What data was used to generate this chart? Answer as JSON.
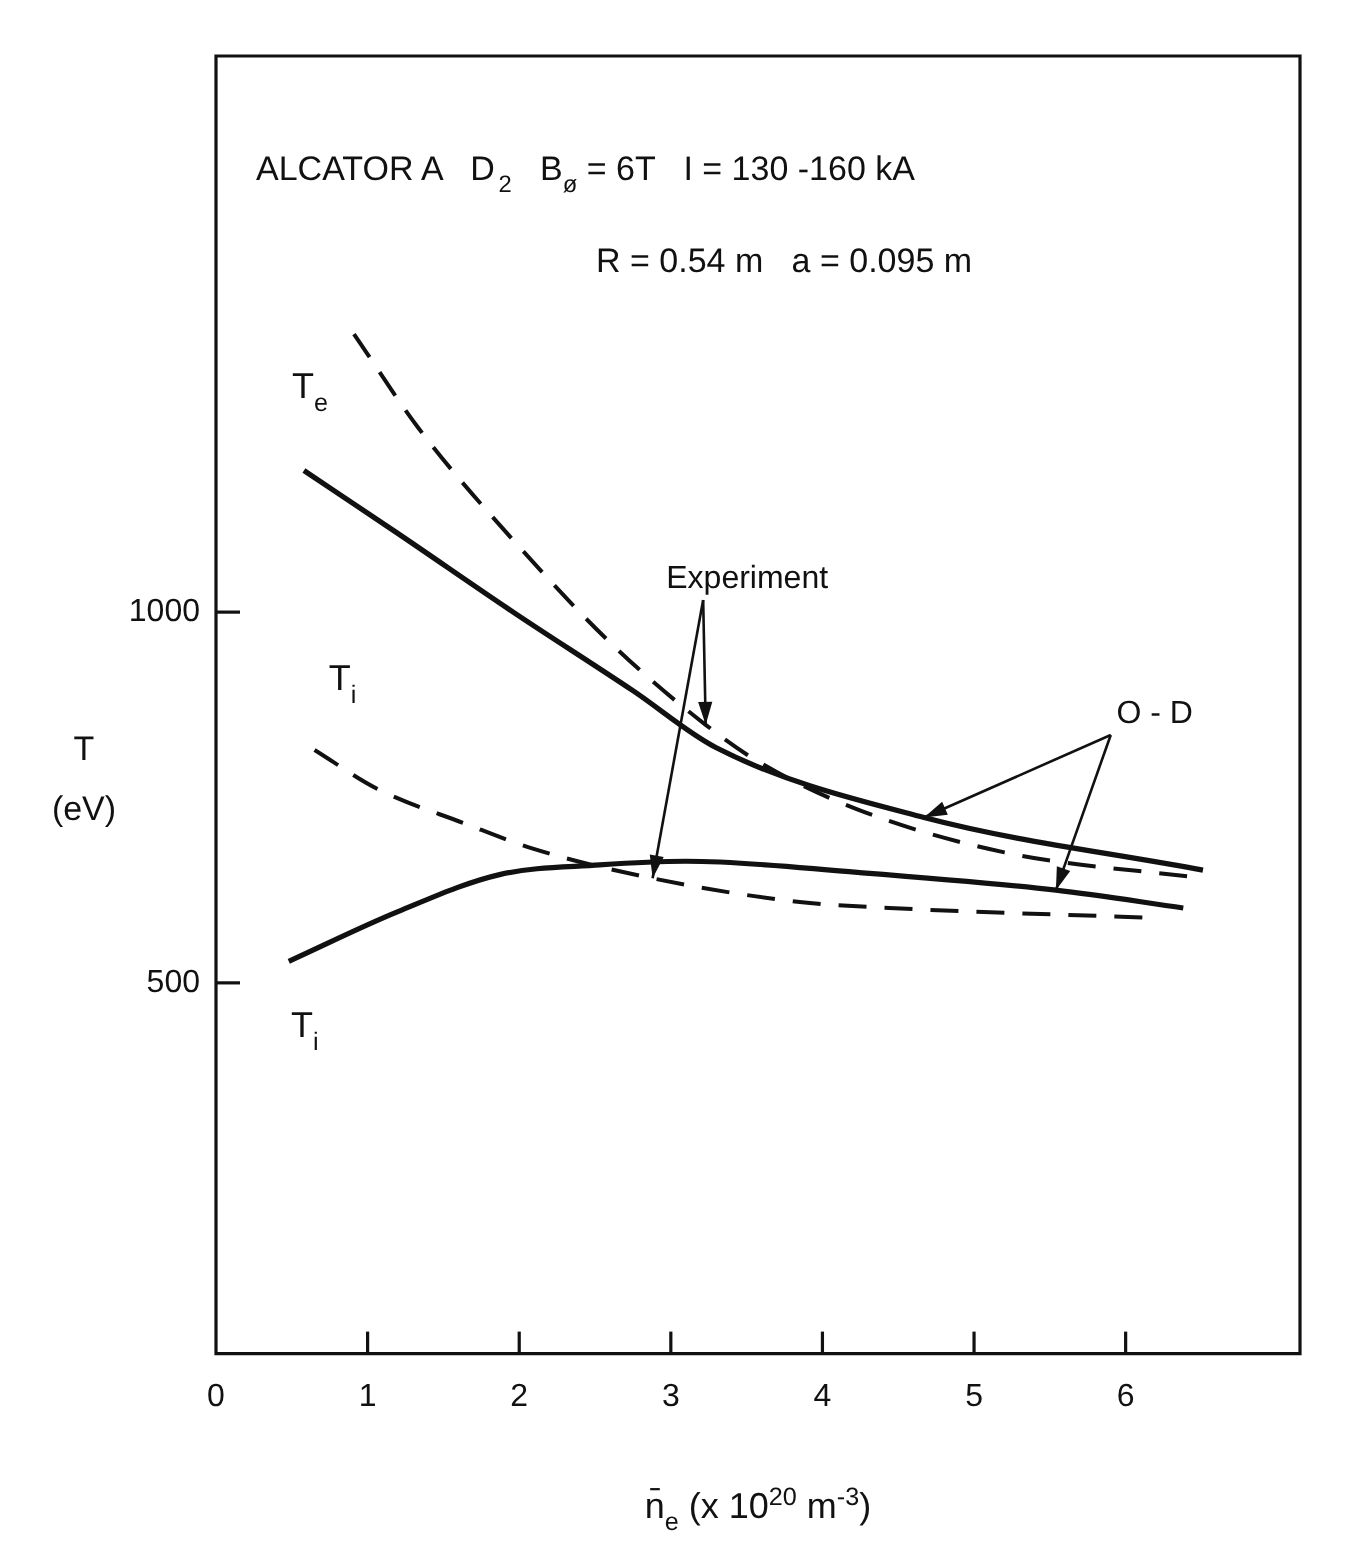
{
  "chart_data": {
    "type": "line",
    "title": "ALCATOR A   D$_{2}$   B$_{ø}$ = 6T   I = 130 -160 kA",
    "subtitle": "R = 0.54 m   a = 0.095 m",
    "xlabel": "n̄$_{e}$ (x 10$^{20}$ m$^{-3}$)",
    "ylabel": "T (eV)",
    "series": [
      {
        "name": "T$_{e}$",
        "color": "#111111",
        "line_style": "dashed",
        "x": [
          0.91,
          1.34,
          2.0,
          2.62,
          3.23,
          3.58,
          4.23,
          5.2,
          6.51
        ],
        "values": [
          1375,
          1247,
          1088,
          955,
          848,
          798,
          734,
          676,
          641
        ]
      },
      {
        "color": "#111111",
        "line_style": "solid",
        "x": [
          0.58,
          1.2,
          1.96,
          2.75,
          3.3,
          4.67,
          6.51
        ],
        "values": [
          1191,
          1106,
          1000,
          894,
          817,
          723,
          652
        ]
      },
      {
        "name": "T$_{i}$",
        "color": "#111111",
        "line_style": "dashed",
        "x": [
          0.65,
          1.07,
          1.64,
          2.09,
          2.88,
          3.85,
          4.44,
          6.15
        ],
        "values": [
          814,
          761,
          715,
          681,
          641,
          609,
          601,
          588
        ]
      },
      {
        "name": "T$_{i}$",
        "color": "#111111",
        "line_style": "solid",
        "x": [
          0.48,
          1.2,
          1.87,
          2.53,
          3.1,
          4.23,
          5.54,
          6.38
        ],
        "values": [
          529,
          596,
          646,
          659,
          664,
          649,
          625,
          601
        ]
      }
    ],
    "annotations": [
      {
        "text": "Experiment",
        "x": 3.23,
        "y": 848
      },
      {
        "text": "O - D",
        "x": 4.67,
        "y": 723
      }
    ],
    "xlim": [
      0,
      7.15
    ],
    "ylim": [
      0,
      1750
    ],
    "xticks": [
      0,
      1,
      2,
      3,
      4,
      5,
      6
    ],
    "yticks": [
      500,
      1000
    ],
    "grid": false,
    "legend": false,
    "marker": "none"
  }
}
